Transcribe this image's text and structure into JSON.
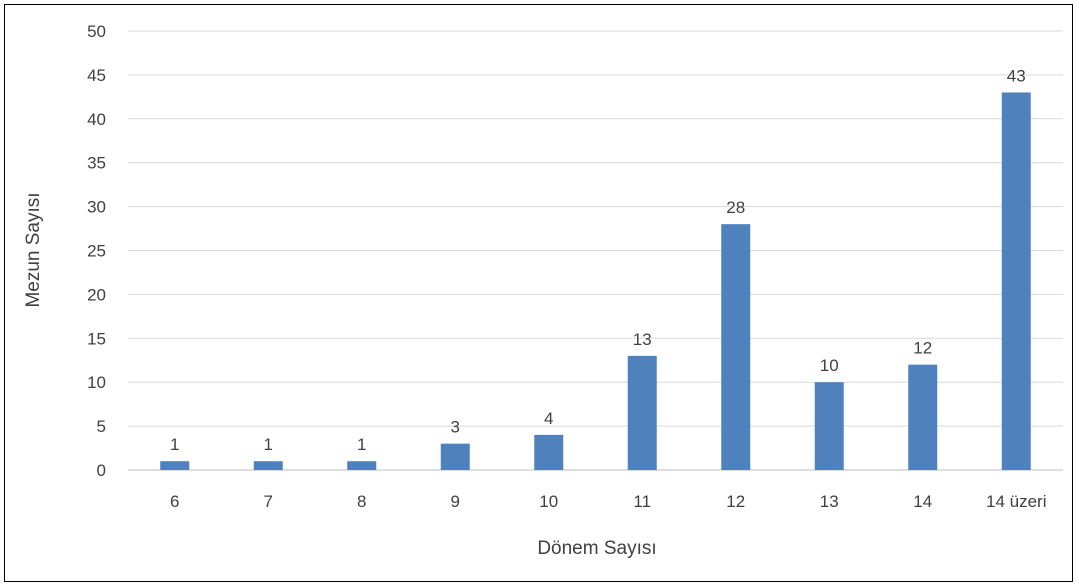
{
  "chart_data": {
    "type": "bar",
    "categories": [
      "6",
      "7",
      "8",
      "9",
      "10",
      "11",
      "12",
      "13",
      "14",
      "14 üzeri"
    ],
    "values": [
      1,
      1,
      1,
      3,
      4,
      13,
      28,
      10,
      12,
      43
    ],
    "data_labels": [
      "1",
      "1",
      "1",
      "3",
      "4",
      "13",
      "28",
      "10",
      "12",
      "43"
    ],
    "xlabel": "Dönem Sayısı",
    "ylabel": "Mezun Sayısı",
    "ylim": [
      0,
      50
    ],
    "yticks": [
      "0",
      "5",
      "10",
      "15",
      "20",
      "25",
      "30",
      "35",
      "40",
      "45",
      "50"
    ],
    "grid": true,
    "legend": "none",
    "colors": {
      "bar": "#4f81bd",
      "grid": "#d9d9d9",
      "axis": "#bfbfbf",
      "text": "#404040"
    }
  }
}
